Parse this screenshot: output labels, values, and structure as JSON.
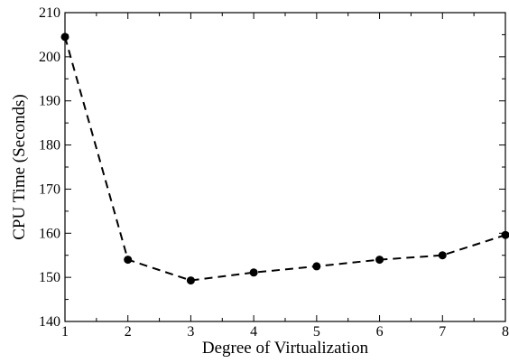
{
  "chart_data": {
    "type": "line",
    "xlabel": "Degree of Virtualization",
    "ylabel": "CPU Time (Seconds)",
    "xlim": [
      1,
      8
    ],
    "ylim": [
      140,
      210
    ],
    "x_ticks": [
      1,
      2,
      3,
      4,
      5,
      6,
      7,
      8
    ],
    "y_ticks": [
      140,
      150,
      160,
      170,
      180,
      190,
      200,
      210
    ],
    "grid": false,
    "line_style": "dashed",
    "marker": "circle",
    "series": [
      {
        "x": [
          1,
          2,
          3,
          4,
          5,
          6,
          7,
          8
        ],
        "values": [
          204.5,
          154,
          149.3,
          151.1,
          152.5,
          154,
          155,
          159.6
        ]
      }
    ]
  }
}
